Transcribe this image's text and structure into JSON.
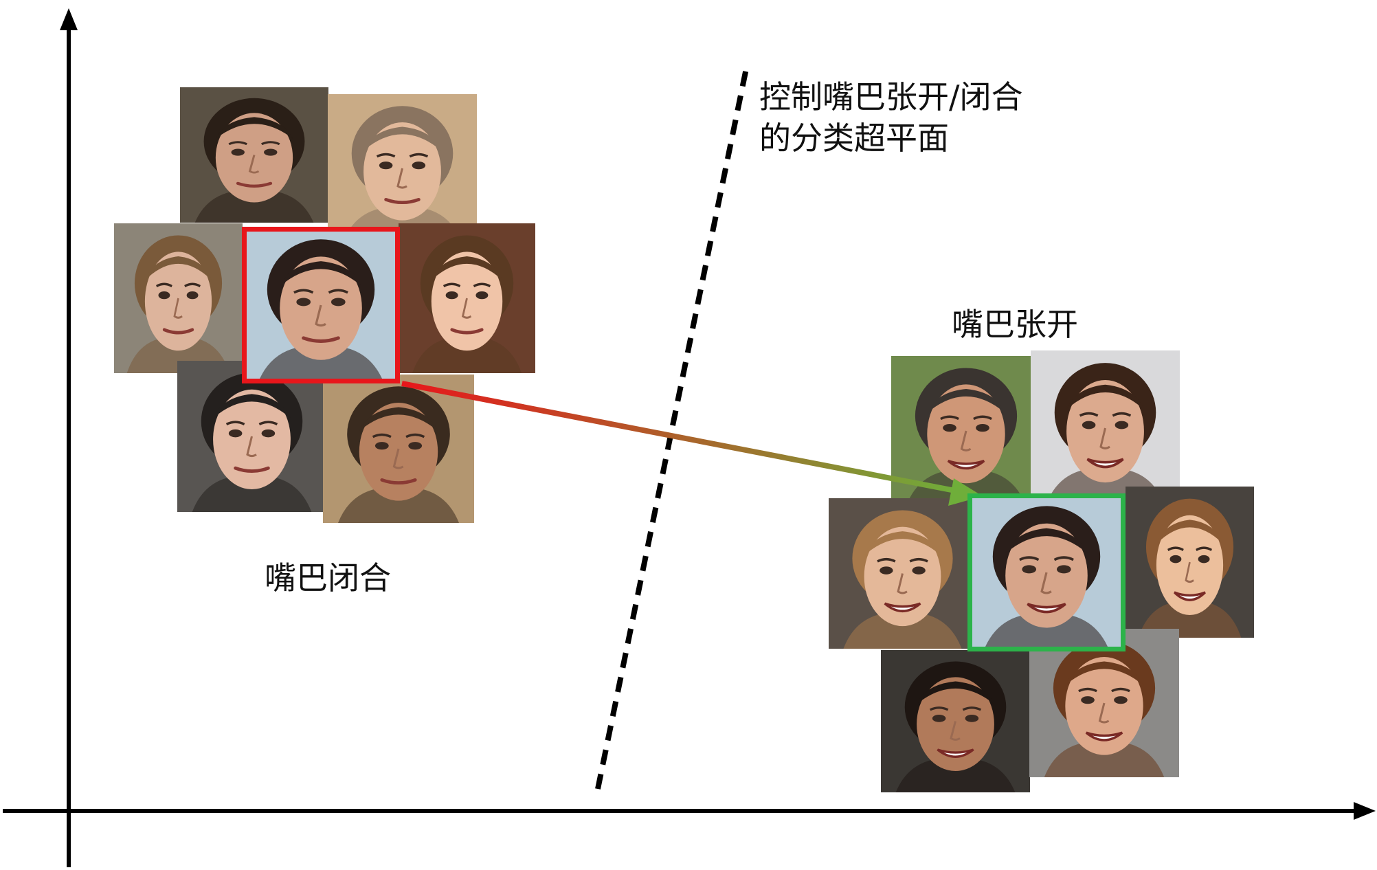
{
  "labels": {
    "hyperplane_line1": "控制嘴巴张开/闭合",
    "hyperplane_line2": "的分类超平面",
    "mouth_open": "嘴巴张开",
    "mouth_closed": "嘴巴闭合"
  },
  "colors": {
    "axis": "#000000",
    "highlight_closed": "#e8161b",
    "highlight_open": "#2cb34a",
    "arrow_start": "#e8161b",
    "arrow_end": "#6fae3a"
  },
  "clusters": {
    "closed_mouth": {
      "faces": [
        {
          "bg": "#5a5144",
          "skin": "#cf9f85",
          "hair": "#2a1f17",
          "mouth": "closed"
        },
        {
          "bg": "#c9ab86",
          "skin": "#e2b99b",
          "hair": "#8a7460",
          "mouth": "closed"
        },
        {
          "bg": "#8c8578",
          "skin": "#ddb49c",
          "hair": "#7a5a3a",
          "mouth": "closed"
        },
        {
          "bg": "#b7cbd8",
          "skin": "#d7a58a",
          "hair": "#2a1e1a",
          "mouth": "closed",
          "highlighted": true
        },
        {
          "bg": "#6a3f2c",
          "skin": "#f0c4a8",
          "hair": "#5a3a22",
          "mouth": "closed"
        },
        {
          "bg": "#585552",
          "skin": "#e3b9a3",
          "hair": "#24201e",
          "mouth": "closed"
        },
        {
          "bg": "#b39670",
          "skin": "#b78160",
          "hair": "#3a2b1f",
          "mouth": "closed"
        }
      ]
    },
    "open_mouth": {
      "faces": [
        {
          "bg": "#6f8a4c",
          "skin": "#cf9777",
          "hair": "#3a3430",
          "mouth": "open"
        },
        {
          "bg": "#d9d9db",
          "skin": "#dcaa8e",
          "hair": "#3a2418",
          "mouth": "open"
        },
        {
          "bg": "#5a5048",
          "skin": "#e4b899",
          "hair": "#a7794b",
          "mouth": "open"
        },
        {
          "bg": "#b7cbd8",
          "skin": "#d7a58a",
          "hair": "#2a1e1a",
          "mouth": "open",
          "highlighted": true
        },
        {
          "bg": "#48433e",
          "skin": "#ecbf9c",
          "hair": "#8a5a34",
          "mouth": "open"
        },
        {
          "bg": "#3a3733",
          "skin": "#b17a5a",
          "hair": "#1e1612",
          "mouth": "open"
        },
        {
          "bg": "#8b8a88",
          "skin": "#dea88a",
          "hair": "#6a3a1e",
          "mouth": "open"
        }
      ]
    }
  }
}
